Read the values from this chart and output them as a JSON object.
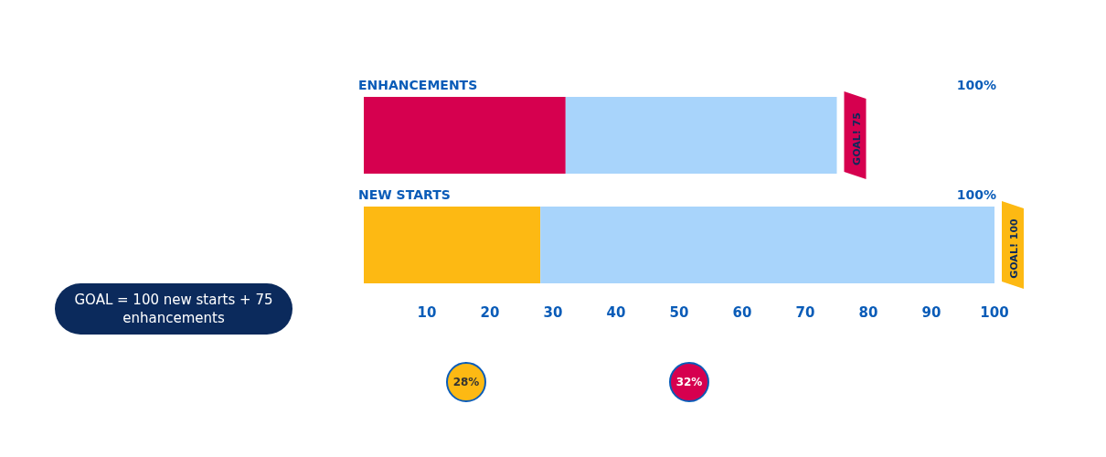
{
  "chart_data": {
    "type": "bar",
    "orientation": "horizontal",
    "stacked": true,
    "categories": [
      "ENHANCEMENTS",
      "NEW STARTS"
    ],
    "series": [
      {
        "colors": [
          "#d6004f",
          "#fdb913"
        ],
        "values": [
          32,
          28
        ]
      },
      {
        "color": "#a8d4fb",
        "values": [
          43,
          72
        ]
      }
    ],
    "xlim": [
      0,
      100
    ],
    "xticks": [
      10,
      20,
      30,
      40,
      50,
      60,
      70,
      80,
      90,
      100
    ],
    "grid": false,
    "legend": false,
    "annotations": [
      "GOAL = 100 new starts + 75 enhancements",
      {
        "text": "GOAL! 75",
        "x": 75,
        "y": "ENHANCEMENTS"
      },
      "100%",
      {
        "text": "GOAL! 100",
        "x": 100,
        "y": "NEW STARTS"
      },
      "100%",
      "28%",
      "32%"
    ]
  }
}
